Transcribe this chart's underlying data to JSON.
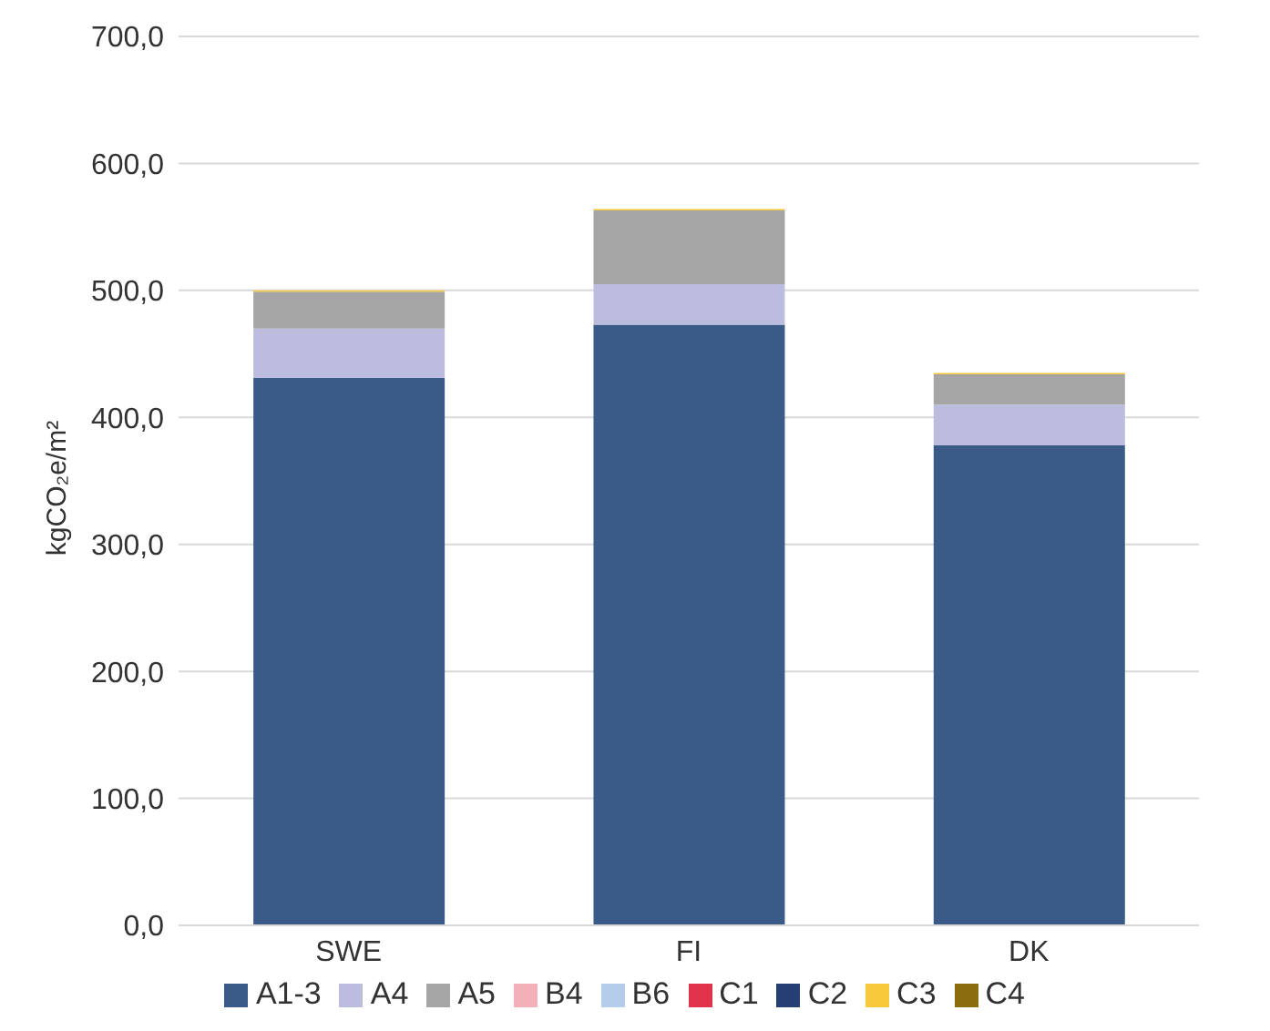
{
  "chart_data": {
    "type": "bar",
    "stacked": true,
    "ylabel": "kgCO₂e/m²",
    "categories": [
      "SWE",
      "FI",
      "DK"
    ],
    "series": [
      {
        "name": "A1-3",
        "color": "#3a5a87",
        "values": [
          431,
          473,
          378
        ]
      },
      {
        "name": "A4",
        "color": "#bcbcde",
        "values": [
          39,
          32,
          32
        ]
      },
      {
        "name": "A5",
        "color": "#a5a5a5",
        "values": [
          29,
          58,
          24
        ]
      },
      {
        "name": "B4",
        "color": "#f4b0b8",
        "values": [
          null,
          null,
          null
        ]
      },
      {
        "name": "B6",
        "color": "#b4cdea",
        "values": [
          null,
          null,
          null
        ]
      },
      {
        "name": "C1",
        "color": "#e0334a",
        "values": [
          null,
          null,
          null
        ]
      },
      {
        "name": "C2",
        "color": "#243f73",
        "values": [
          null,
          null,
          null
        ]
      },
      {
        "name": "C3",
        "color": "#f9c93c",
        "values": [
          1,
          1,
          1
        ]
      },
      {
        "name": "C4",
        "color": "#8b6d10",
        "values": [
          null,
          null,
          null
        ]
      }
    ],
    "ylim": [
      0,
      700
    ],
    "yticks": [
      {
        "value": 0,
        "label": "0,0"
      },
      {
        "value": 100,
        "label": "100,0"
      },
      {
        "value": 200,
        "label": "200,0"
      },
      {
        "value": 300,
        "label": "300,0"
      },
      {
        "value": 400,
        "label": "400,0"
      },
      {
        "value": 500,
        "label": "500,0"
      },
      {
        "value": 600,
        "label": "600,0"
      },
      {
        "value": 700,
        "label": "700,0"
      }
    ],
    "grid": "y",
    "legend": "bottom"
  }
}
